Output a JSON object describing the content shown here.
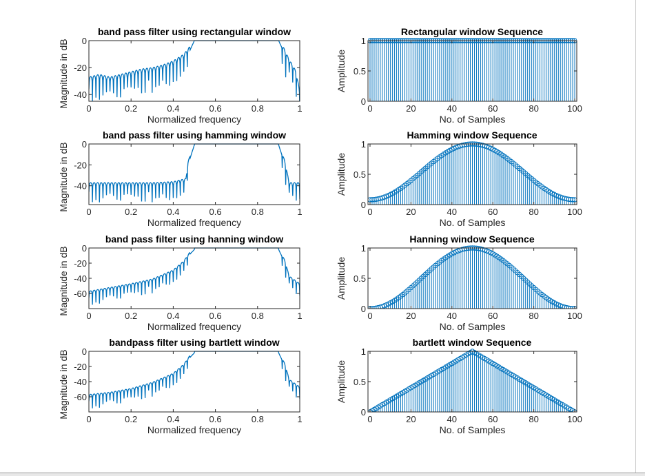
{
  "colors": {
    "line": "#0072bd",
    "axes": "#262626",
    "background": "#ffffff"
  },
  "chart_data": [
    {
      "type": "line",
      "title": "band pass filter using rectangular window",
      "xlabel": "Normalized frequency",
      "ylabel": "Magnitude in dB",
      "xlim": [
        0,
        1
      ],
      "ylim": [
        -45,
        0
      ],
      "xticks": [
        "0",
        "0.2",
        "0.4",
        "0.6",
        "0.8",
        "1"
      ],
      "yticks": [
        "0",
        "-20",
        "-40"
      ],
      "series": [
        {
          "window": "rectangular",
          "points": [
            [
              0.0,
              -30
            ],
            [
              0.05,
              -28
            ],
            [
              0.1,
              -30
            ],
            [
              0.15,
              -28
            ],
            [
              0.2,
              -26
            ],
            [
              0.25,
              -24
            ],
            [
              0.3,
              -23
            ],
            [
              0.35,
              -21
            ],
            [
              0.4,
              -18
            ],
            [
              0.45,
              -13
            ],
            [
              0.48,
              -7
            ],
            [
              0.5,
              0
            ],
            [
              0.9,
              0
            ],
            [
              0.92,
              -7
            ],
            [
              0.95,
              -17
            ],
            [
              0.98,
              -25
            ],
            [
              1.0,
              -40
            ]
          ]
        }
      ]
    },
    {
      "type": "stem",
      "title": "Rectangular window Sequence",
      "xlabel": "No. of Samples",
      "ylabel": "Amplitude",
      "xlim": [
        -1,
        101
      ],
      "ylim": [
        0,
        1
      ],
      "xticks": [
        "0",
        "20",
        "40",
        "60",
        "80",
        "100"
      ],
      "yticks": [
        "0",
        "0.5",
        "1"
      ],
      "series": [
        {
          "window": "rectangular",
          "n": [
            0,
            100
          ],
          "value": 1
        }
      ]
    },
    {
      "type": "line",
      "title": "band pass filter using hamming window",
      "xlabel": "Normalized frequency",
      "ylabel": "Magnitude in dB",
      "xlim": [
        0,
        1
      ],
      "ylim": [
        -58,
        0
      ],
      "xticks": [
        "0",
        "0.2",
        "0.4",
        "0.6",
        "0.8",
        "1"
      ],
      "yticks": [
        "0",
        "-20",
        "-40"
      ],
      "series": [
        {
          "window": "hamming",
          "points": [
            [
              0.0,
              -40
            ],
            [
              0.1,
              -40
            ],
            [
              0.2,
              -40
            ],
            [
              0.3,
              -40
            ],
            [
              0.4,
              -39
            ],
            [
              0.46,
              -36
            ],
            [
              0.47,
              -20
            ],
            [
              0.5,
              -1
            ],
            [
              0.52,
              0
            ],
            [
              0.88,
              0
            ],
            [
              0.9,
              -1
            ],
            [
              0.93,
              -20
            ],
            [
              0.95,
              -40
            ],
            [
              1.0,
              -40
            ]
          ]
        }
      ]
    },
    {
      "type": "stem",
      "title": "Hamming window Sequence",
      "xlabel": "No. of Samples",
      "ylabel": "Amplitude",
      "xlim": [
        -1,
        101
      ],
      "ylim": [
        0,
        1
      ],
      "xticks": [
        "0",
        "20",
        "40",
        "60",
        "80",
        "100"
      ],
      "yticks": [
        "0",
        "0.5",
        "1"
      ],
      "series": [
        {
          "window": "hamming",
          "n": [
            0,
            100
          ],
          "formula": "0.54 - 0.46 cos(2πn/100)"
        }
      ]
    },
    {
      "type": "line",
      "title": "band pass filter using hanning window",
      "xlabel": "Normalized frequency",
      "ylabel": "Magnitude in dB",
      "xlim": [
        0,
        1
      ],
      "ylim": [
        -80,
        0
      ],
      "xticks": [
        "0",
        "0.2",
        "0.4",
        "0.6",
        "0.8",
        "1"
      ],
      "yticks": [
        "0",
        "-20",
        "-40",
        "-60"
      ],
      "series": [
        {
          "window": "hanning",
          "points": [
            [
              0.0,
              -60
            ],
            [
              0.1,
              -55
            ],
            [
              0.2,
              -50
            ],
            [
              0.3,
              -44
            ],
            [
              0.4,
              -32
            ],
            [
              0.45,
              -20
            ],
            [
              0.48,
              -8
            ],
            [
              0.5,
              -2
            ],
            [
              0.52,
              0
            ],
            [
              0.88,
              0
            ],
            [
              0.9,
              -2
            ],
            [
              0.93,
              -20
            ],
            [
              0.95,
              -40
            ],
            [
              1.0,
              -50
            ]
          ]
        }
      ]
    },
    {
      "type": "stem",
      "title": "Hanning window Sequence",
      "xlabel": "No. of Samples",
      "ylabel": "Amplitude",
      "xlim": [
        -1,
        101
      ],
      "ylim": [
        0,
        1
      ],
      "xticks": [
        "0",
        "20",
        "40",
        "60",
        "80",
        "100"
      ],
      "yticks": [
        "0",
        "0.5",
        "1"
      ],
      "series": [
        {
          "window": "hanning",
          "n": [
            0,
            100
          ],
          "formula": "0.5 - 0.5 cos(2πn/100)"
        }
      ]
    },
    {
      "type": "line",
      "title": "bandpass filter using bartlett window",
      "xlabel": "Normalized frequency",
      "ylabel": "Magnitude in dB",
      "xlim": [
        0,
        1
      ],
      "ylim": [
        -80,
        0
      ],
      "xticks": [
        "0",
        "0.2",
        "0.4",
        "0.6",
        "0.8",
        "1"
      ],
      "yticks": [
        "0",
        "-20",
        "-40",
        "-60"
      ],
      "series": [
        {
          "window": "bartlett",
          "points": [
            [
              0.0,
              -60
            ],
            [
              0.1,
              -57
            ],
            [
              0.2,
              -52
            ],
            [
              0.3,
              -44
            ],
            [
              0.4,
              -32
            ],
            [
              0.45,
              -20
            ],
            [
              0.48,
              -8
            ],
            [
              0.5,
              -2
            ],
            [
              0.52,
              0
            ],
            [
              0.88,
              0
            ],
            [
              0.9,
              -2
            ],
            [
              0.93,
              -20
            ],
            [
              0.95,
              -40
            ],
            [
              1.0,
              -50
            ]
          ]
        }
      ]
    },
    {
      "type": "stem",
      "title": "bartlett window Sequence",
      "xlabel": "No. of Samples",
      "ylabel": "Amplitude",
      "xlim": [
        -1,
        101
      ],
      "ylim": [
        0,
        1
      ],
      "xticks": [
        "0",
        "20",
        "40",
        "60",
        "80",
        "100"
      ],
      "yticks": [
        "0",
        "0.5",
        "1"
      ],
      "series": [
        {
          "window": "bartlett",
          "n": [
            0,
            100
          ],
          "formula": "1 - |n-50|/50"
        }
      ]
    }
  ]
}
